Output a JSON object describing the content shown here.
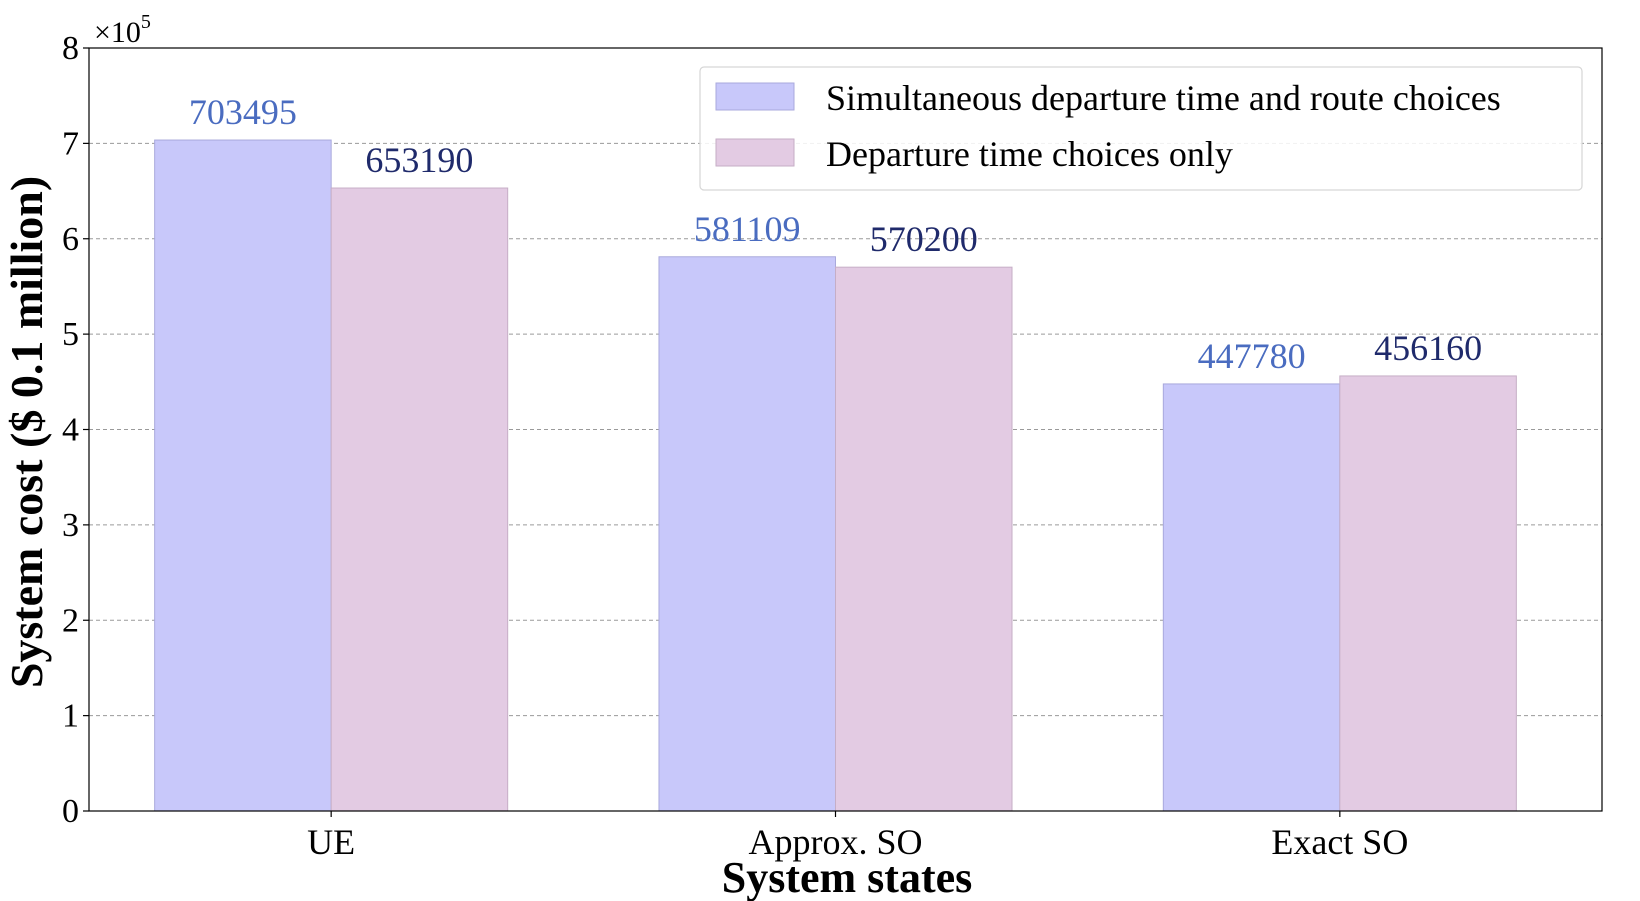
{
  "chart_data": {
    "type": "bar",
    "title": "",
    "xlabel": "System states",
    "ylabel": "System cost ($ 0.1 million)",
    "y_multiplier_label": "×10",
    "y_multiplier_exponent": "5",
    "ylim": [
      0,
      8
    ],
    "yticks": [
      "0",
      "1",
      "2",
      "3",
      "4",
      "5",
      "6",
      "7",
      "8"
    ],
    "grid": true,
    "legend_position": "top-right",
    "categories": [
      "UE",
      "Approx. SO",
      "Exact SO"
    ],
    "series": [
      {
        "name": "Simultaneous departure time and route choices",
        "values": [
          703495,
          581109,
          447780
        ],
        "labels": [
          "703495",
          "581109",
          "447780"
        ],
        "color": "#c8c8fa",
        "edge_color": "#a9a9dc",
        "label_color": "#4a6cc0"
      },
      {
        "name": "Departure time choices only",
        "values": [
          653190,
          570200,
          456160
        ],
        "labels": [
          "653190",
          "570200",
          "456160"
        ],
        "color": "#e3cbe3",
        "edge_color": "#c6aec6",
        "label_color": "#1f2a6b"
      }
    ]
  }
}
